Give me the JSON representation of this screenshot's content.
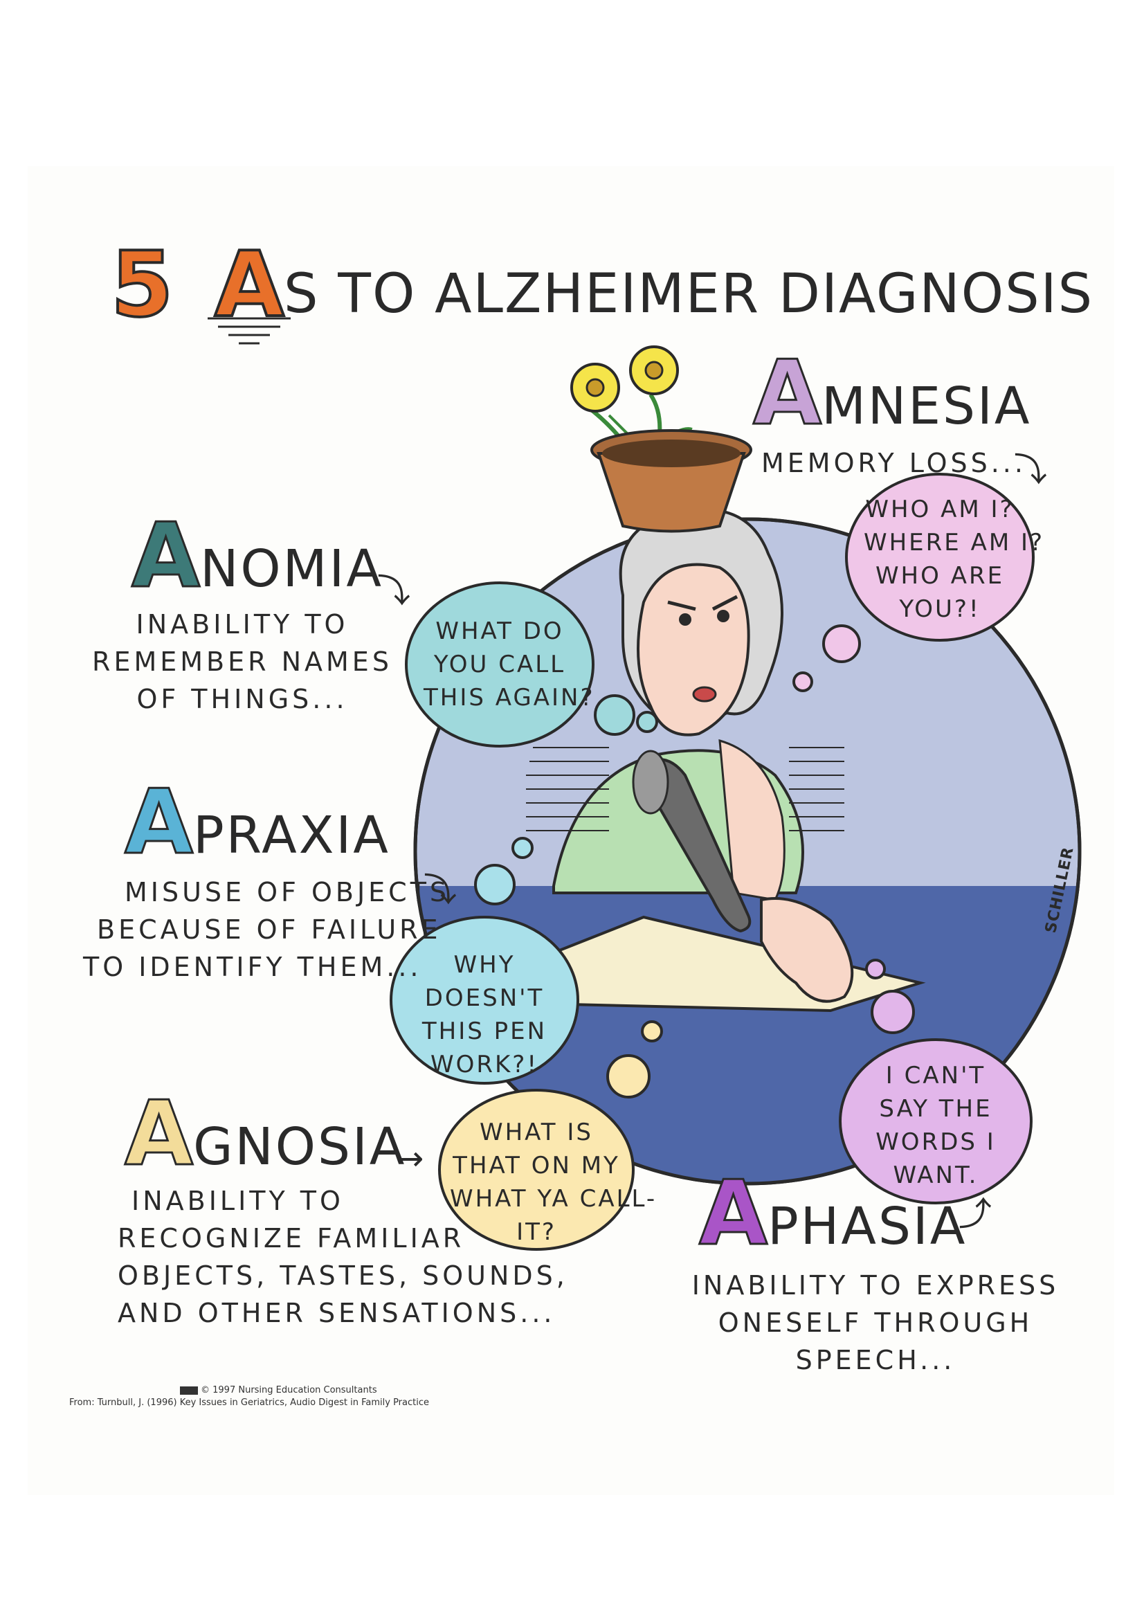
{
  "title": {
    "number": "5",
    "letter": "A",
    "rest": "S TO ALZHEIMER DIAGNOSIS"
  },
  "terms": {
    "amnesia": {
      "cap": "A",
      "word": "MNESIA",
      "color": "#c7a3d6",
      "description": [
        "MEMORY LOSS..."
      ],
      "bubble": [
        "WHO AM I?",
        "WHERE AM I?",
        "WHO ARE",
        "YOU?!"
      ],
      "bubble_color": "#f0c6e8"
    },
    "anomia": {
      "cap": "A",
      "word": "NOMIA",
      "color": "#3d7a78",
      "description": [
        "INABILITY TO",
        "REMEMBER NAMES",
        "OF THINGS..."
      ],
      "bubble": [
        "WHAT DO",
        "YOU CALL",
        "THIS AGAIN?"
      ],
      "bubble_color": "#9fd9dc"
    },
    "apraxia": {
      "cap": "A",
      "word": "PRAXIA",
      "color": "#5ab3d6",
      "description": [
        "MISUSE OF OBJECTS",
        "BECAUSE OF FAILURE",
        "TO IDENTIFY THEM..."
      ],
      "bubble": [
        "WHY",
        "DOESN'T",
        "THIS PEN",
        "WORK?!"
      ],
      "bubble_color": "#a9e0ea"
    },
    "agnosia": {
      "cap": "A",
      "word": "GNOSIA",
      "color": "#f3dc9a",
      "description": [
        "INABILITY TO",
        "RECOGNIZE FAMILIAR",
        "OBJECTS, TASTES, SOUNDS,",
        "AND OTHER SENSATIONS..."
      ],
      "bubble": [
        "WHAT IS",
        "THAT ON MY",
        "WHAT YA CALL-",
        "IT?"
      ],
      "bubble_color": "#fbe8b0"
    },
    "aphasia": {
      "cap": "A",
      "word": "PHASIA",
      "color": "#a955c7",
      "description": [
        "INABILITY TO EXPRESS",
        "ONESELF  THROUGH",
        "SPEECH..."
      ],
      "bubble": [
        "I CAN'T",
        "SAY THE",
        "WORDS I",
        "WANT."
      ],
      "bubble_color": "#e2b6ea"
    }
  },
  "colors": {
    "circle_light": "#bcc5e0",
    "table_blue": "#4f67a8",
    "outline": "#2a2a2a",
    "title_accent": "#e8702a"
  },
  "signature": "SCHILLER",
  "credit": {
    "line1": "© 1997 Nursing Education Consultants",
    "line2": "From: Turnbull, J. (1996) Key Issues in Geriatrics, Audio Digest in Family Practice"
  }
}
